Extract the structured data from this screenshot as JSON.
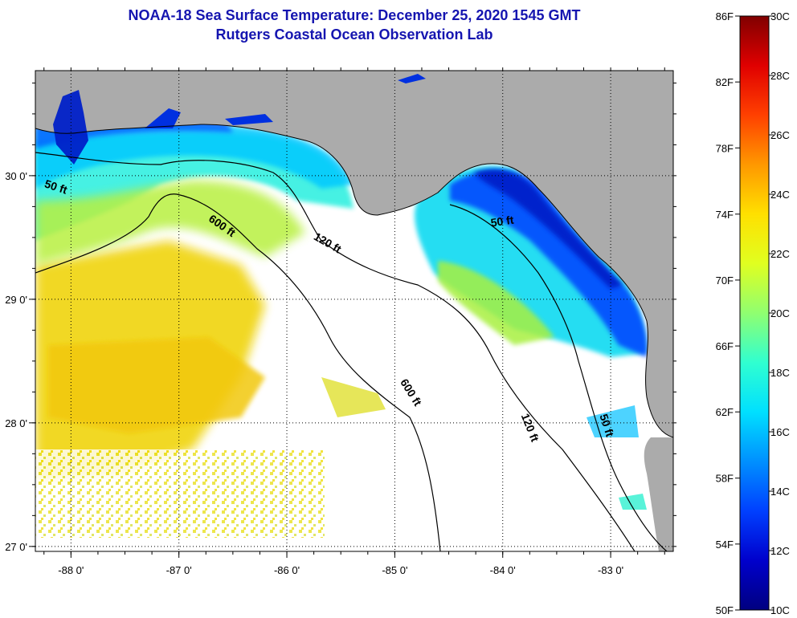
{
  "title": "NOAA-18 Sea Surface Temperature:  December 25, 2020 1545 GMT",
  "subtitle": "Rutgers Coastal Ocean Observation Lab",
  "map": {
    "lon_range": [
      -88.33,
      -82.42
    ],
    "lat_range": [
      26.96,
      30.85
    ],
    "lon_ticks": [
      {
        "value": -88,
        "label": "-88 0'"
      },
      {
        "value": -87,
        "label": "-87 0'"
      },
      {
        "value": -86,
        "label": "-86 0'"
      },
      {
        "value": -85,
        "label": "-85 0'"
      },
      {
        "value": -84,
        "label": "-84 0'"
      },
      {
        "value": -83,
        "label": "-83 0'"
      }
    ],
    "lat_ticks": [
      {
        "value": 30,
        "label": "30 0'"
      },
      {
        "value": 29,
        "label": "29 0'"
      },
      {
        "value": 28,
        "label": "28 0'"
      },
      {
        "value": 27,
        "label": "27 0'"
      }
    ],
    "land_color": "#ababab",
    "no_data_color": "#ffffff",
    "contour_labels": [
      {
        "text": "50 ft",
        "lon": -88.15,
        "lat": 29.88,
        "angle": 18
      },
      {
        "text": "600 ft",
        "lon": -86.62,
        "lat": 29.57,
        "angle": 35
      },
      {
        "text": "120 ft",
        "lon": -85.64,
        "lat": 29.43,
        "angle": 30
      },
      {
        "text": "50 ft",
        "lon": -84.0,
        "lat": 29.6,
        "angle": -8
      },
      {
        "text": "600 ft",
        "lon": -84.88,
        "lat": 28.23,
        "angle": 58
      },
      {
        "text": "120 ft",
        "lon": -83.78,
        "lat": 27.95,
        "angle": 68
      },
      {
        "text": "50 ft",
        "lon": -83.07,
        "lat": 27.97,
        "angle": 72
      }
    ]
  },
  "colorbar": {
    "min_c": 10,
    "max_c": 30,
    "stops": [
      "#000080",
      "#0000cc",
      "#0040ff",
      "#0090ff",
      "#00e0ff",
      "#30ffd0",
      "#90ff70",
      "#e0ff20",
      "#ffe000",
      "#ff9800",
      "#ff4000",
      "#e00000",
      "#800000"
    ],
    "fahrenheit_labels": [
      {
        "label": "86F",
        "value_c": 30
      },
      {
        "label": "82F",
        "value_c": 27.78
      },
      {
        "label": "78F",
        "value_c": 25.56
      },
      {
        "label": "74F",
        "value_c": 23.33
      },
      {
        "label": "70F",
        "value_c": 21.11
      },
      {
        "label": "66F",
        "value_c": 18.89
      },
      {
        "label": "62F",
        "value_c": 16.67
      },
      {
        "label": "58F",
        "value_c": 14.44
      },
      {
        "label": "54F",
        "value_c": 12.22
      },
      {
        "label": "50F",
        "value_c": 10
      }
    ],
    "celsius_labels": [
      {
        "label": "30C",
        "value_c": 30
      },
      {
        "label": "28C",
        "value_c": 28
      },
      {
        "label": "26C",
        "value_c": 26
      },
      {
        "label": "24C",
        "value_c": 24
      },
      {
        "label": "22C",
        "value_c": 22
      },
      {
        "label": "20C",
        "value_c": 20
      },
      {
        "label": "18C",
        "value_c": 18
      },
      {
        "label": "16C",
        "value_c": 16
      },
      {
        "label": "14C",
        "value_c": 14
      },
      {
        "label": "12C",
        "value_c": 12
      },
      {
        "label": "10C",
        "value_c": 10
      }
    ]
  }
}
